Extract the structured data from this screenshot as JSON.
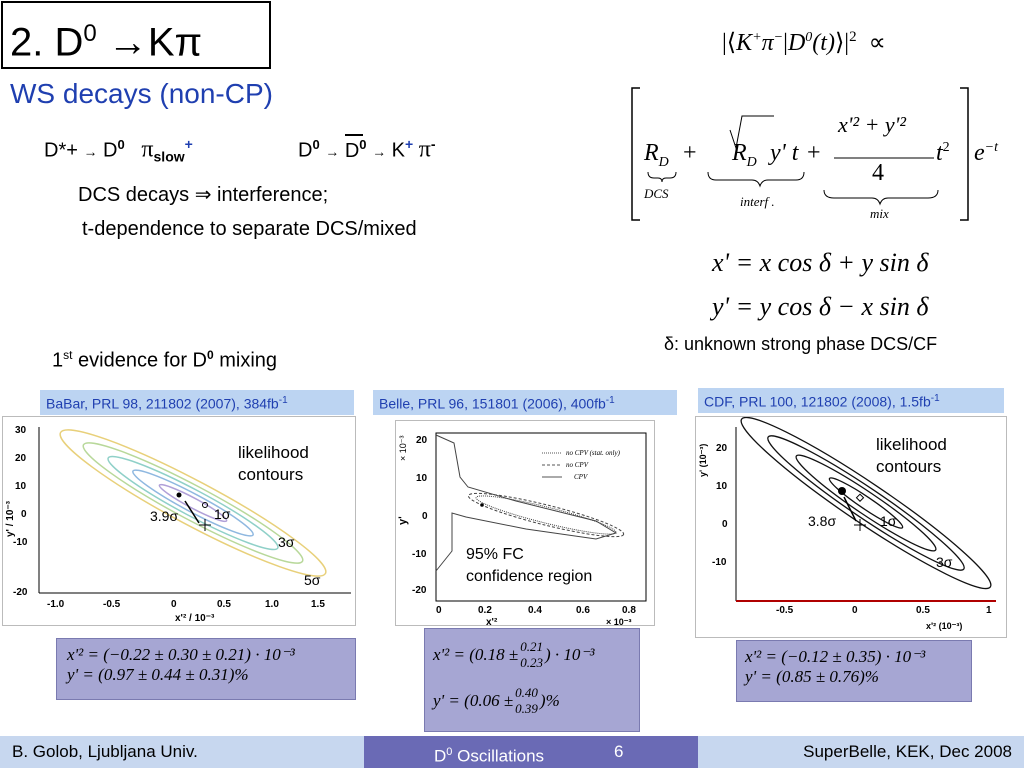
{
  "title": {
    "prefix": "2. D",
    "sup": "0",
    "arrow": " →Kπ"
  },
  "subtitle": "WS decays (non-CP)",
  "decay": {
    "left": {
      "dstar": "D*+",
      "arrow": "→",
      "d0": "D",
      "d0_sup": "0",
      "pi": "π",
      "pi_sub": "slow",
      "pi_sup": "+"
    },
    "right": {
      "d0": "D",
      "d0_sup": "0",
      "arrow": "→",
      "d0bar": "D",
      "d0bar_sup": "0",
      "arrow2": "→",
      "k": "K",
      "k_sup": "+",
      "pi": "π",
      "pi_sup": "-"
    }
  },
  "bullets": {
    "dcs": "DCS decays ⇒ interference;",
    "tdep": "t-dependence to separate DCS/mixed"
  },
  "formula": {
    "amp_left": "K",
    "amp_pi": "π",
    "amp_d0": "D",
    "amp_t": "(t)",
    "amp_exp": "2",
    "amp_prop": "∝",
    "rd": "R",
    "rd_sub": "D",
    "dcs_label": "DCS",
    "sqrt_term": "y' t",
    "interf_label": "interf .",
    "mix_num": "x'² + y'²",
    "mix_den": "4",
    "mix_t": "t",
    "mix_t_exp": "2",
    "mix_label": "mix",
    "exp_e": "e",
    "exp_pow": "−t",
    "xprime": "x' = x cos δ + y sin δ",
    "yprime": "y' = y cos δ − x sin δ",
    "delta_note": "δ: unknown strong phase DCS/CF"
  },
  "evidence": {
    "prefix": "1",
    "sup": "st",
    "mid": " evidence for D",
    "d_sup": "0",
    "suffix": " mixing"
  },
  "panels": [
    {
      "label": "BaBar, PRL 98, 211802 (2007), 384fb",
      "label_sup": "-1",
      "note1": "likelihood",
      "note2": "contours",
      "sig1": "3.9σ",
      "sig2": "1σ",
      "sig3": "3σ",
      "sig4": "5σ",
      "yaxis": "y' / 10⁻³",
      "xaxis": "x'² / 10⁻³",
      "yticks": [
        "30",
        "20",
        "10",
        "0",
        "-10",
        "-20"
      ],
      "xticks": [
        "-1.0",
        "-0.5",
        "0",
        "0.5",
        "1.0",
        "1.5"
      ],
      "result_x": "x'² = (−0.22 ± 0.30 ± 0.21) · 10⁻³",
      "result_y": "y' = (0.97 ± 0.44 ± 0.31)%"
    },
    {
      "label": "Belle, PRL 96, 151801 (2006), 400fb",
      "label_sup": "-1",
      "note1": "95% FC",
      "note2": "confidence region",
      "legend": [
        "no CPV (stat. only)",
        "no CPV",
        "CPV"
      ],
      "yaxis": "y'",
      "yexp": "× 10⁻³",
      "xaxis": "x'²",
      "xexp": "× 10⁻³",
      "yticks": [
        "20",
        "10",
        "0",
        "-10",
        "-20"
      ],
      "xticks": [
        "0",
        "0.2",
        "0.4",
        "0.6",
        "0.8"
      ],
      "result_x_pre": "x'² = (0.18 ±",
      "result_x_up": "0.21",
      "result_x_dn": "0.23",
      "result_x_post": ") · 10⁻³",
      "result_y_pre": "y' = (0.06 ±",
      "result_y_up": "0.40",
      "result_y_dn": "0.39",
      "result_y_post": ")%"
    },
    {
      "label": "CDF, PRL 100, 121802 (2008), 1.5fb",
      "label_sup": "-1",
      "note1": "likelihood",
      "note2": "contours",
      "sig1": "3.8σ",
      "sig2": "1σ",
      "sig3": "3σ",
      "yaxis": "y' (10⁻³)",
      "xaxis": "x'² (10⁻³)",
      "yticks": [
        "20",
        "10",
        "0",
        "-10"
      ],
      "xticks": [
        "-0.5",
        "0",
        "0.5",
        "1"
      ],
      "result_x": "x'² = (−0.12 ± 0.35) · 10⁻³",
      "result_y": "y' = (0.85 ± 0.76)%"
    }
  ],
  "footer": {
    "left": "B. Golob, Ljubljana Univ.",
    "mid_prefix": "D",
    "mid_sup": "0",
    "mid_suffix": " Oscillations",
    "page": "6",
    "right": "SuperBelle, KEK, Dec 2008"
  },
  "colors": {
    "accent": "#1f3fb0",
    "label_bg": "#bcd4f2",
    "result_bg": "#a6a6d3",
    "footer_mid": "#6a6ab5",
    "footer_side": "#c7d7ef"
  }
}
